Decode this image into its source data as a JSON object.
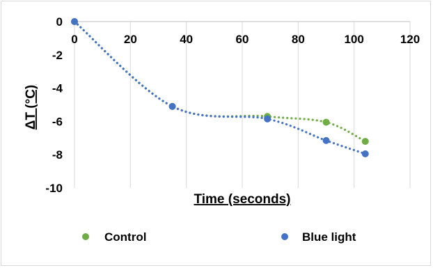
{
  "chart_data": {
    "type": "scatter",
    "title": "",
    "xlabel": "Time (seconds)",
    "ylabel": "ΔT (°C)",
    "xlim": [
      0,
      120
    ],
    "ylim": [
      -10,
      0
    ],
    "x_ticks": [
      "0",
      "20",
      "40",
      "60",
      "80",
      "100",
      "120"
    ],
    "y_ticks": [
      "0",
      "-2",
      "-4",
      "-6",
      "-8",
      "-10"
    ],
    "grid": "vertical",
    "x_axis_position": "top",
    "legend": "bottom",
    "trendline": "dotted polynomial",
    "series": [
      {
        "name": "Control",
        "color": "#70ad47",
        "x": [
          0,
          35,
          69,
          90,
          104
        ],
        "y": [
          0,
          -5.1,
          -5.7,
          -6.05,
          -7.2
        ]
      },
      {
        "name": "Blue light",
        "color": "#4472c4",
        "x": [
          0,
          35,
          69,
          90,
          104
        ],
        "y": [
          0,
          -5.1,
          -5.85,
          -7.15,
          -7.95
        ]
      }
    ]
  }
}
